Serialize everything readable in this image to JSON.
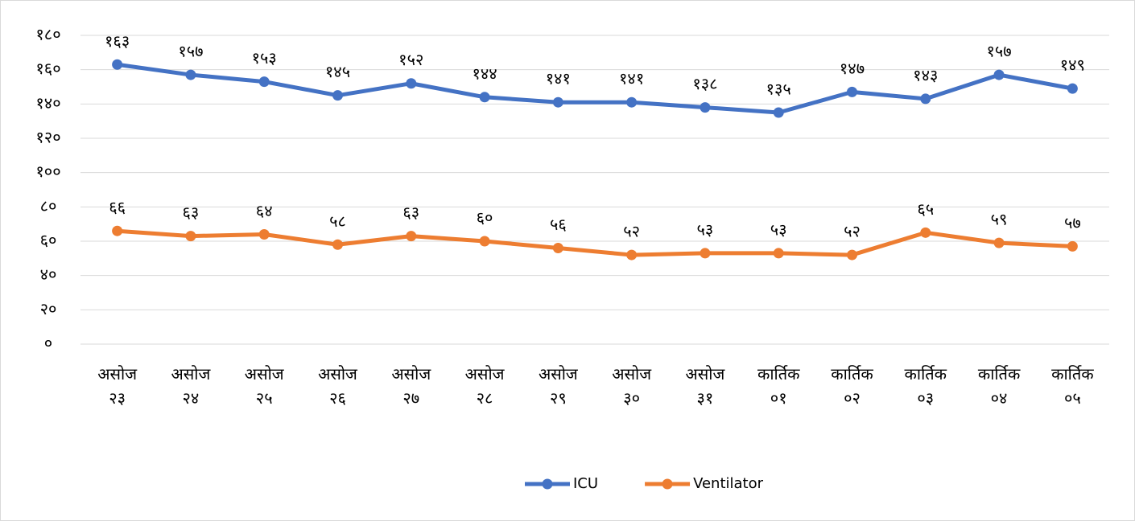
{
  "chart_data": {
    "type": "line",
    "categories": [
      "असोज २३",
      "असोज २४",
      "असोज २५",
      "असोज २६",
      "असोज २७",
      "असोज २८",
      "असोज २९",
      "असोज ३०",
      "असोज ३१",
      "कार्तिक ०१",
      "कार्तिक ०२",
      "कार्तिक ०३",
      "कार्तिक ०४",
      "कार्तिक ०५"
    ],
    "series": [
      {
        "name": "ICU",
        "color": "#4472c4",
        "values": [
          163,
          157,
          153,
          145,
          152,
          144,
          141,
          141,
          138,
          135,
          147,
          143,
          157,
          149
        ],
        "value_labels": [
          "१६३",
          "१५७",
          "१५३",
          "१४५",
          "१५२",
          "१४४",
          "१४१",
          "१४१",
          "१३८",
          "१३५",
          "१४७",
          "१४३",
          "१५७",
          "१४९"
        ]
      },
      {
        "name": "Ventilator",
        "color": "#ed7d31",
        "values": [
          66,
          63,
          64,
          58,
          63,
          60,
          56,
          52,
          53,
          53,
          52,
          65,
          59,
          57
        ],
        "value_labels": [
          "६६",
          "६३",
          "६४",
          "५८",
          "६३",
          "६०",
          "५६",
          "५२",
          "५३",
          "५३",
          "५२",
          "६५",
          "५९",
          "५७"
        ]
      }
    ],
    "ylim": [
      0,
      180
    ],
    "yticks": [
      {
        "value": 0,
        "label": "०"
      },
      {
        "value": 20,
        "label": "२०"
      },
      {
        "value": 40,
        "label": "४०"
      },
      {
        "value": 60,
        "label": "६०"
      },
      {
        "value": 80,
        "label": "८०"
      },
      {
        "value": 100,
        "label": "१००"
      },
      {
        "value": 120,
        "label": "१२०"
      },
      {
        "value": 140,
        "label": "१४०"
      },
      {
        "value": 160,
        "label": "१६०"
      },
      {
        "value": 180,
        "label": "१८०"
      }
    ],
    "grid": true,
    "legend": "bottom"
  }
}
